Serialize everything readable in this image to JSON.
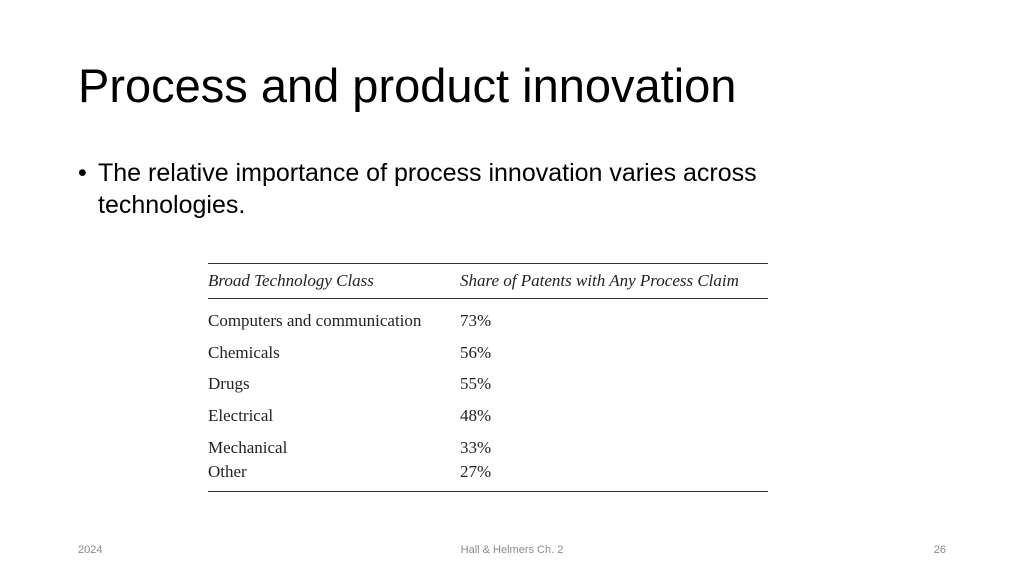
{
  "slide": {
    "title": "Process and product innovation",
    "bullet_marker": "•",
    "bullet_text": "The relative importance of process innovation varies across technologies."
  },
  "table": {
    "headers": [
      "Broad Technology Class",
      "Share of Patents with Any Process Claim"
    ],
    "rows": [
      {
        "class": "Computers and communication",
        "share": "73%"
      },
      {
        "class": "Chemicals",
        "share": "56%"
      },
      {
        "class": "Drugs",
        "share": "55%"
      },
      {
        "class": "Electrical",
        "share": "48%"
      },
      {
        "class": "Mechanical",
        "share": "33%"
      },
      {
        "class": "Other",
        "share": "27%"
      }
    ]
  },
  "footer": {
    "date": "2024",
    "center": "Hall & Helmers Ch. 2",
    "page_number": "26"
  }
}
